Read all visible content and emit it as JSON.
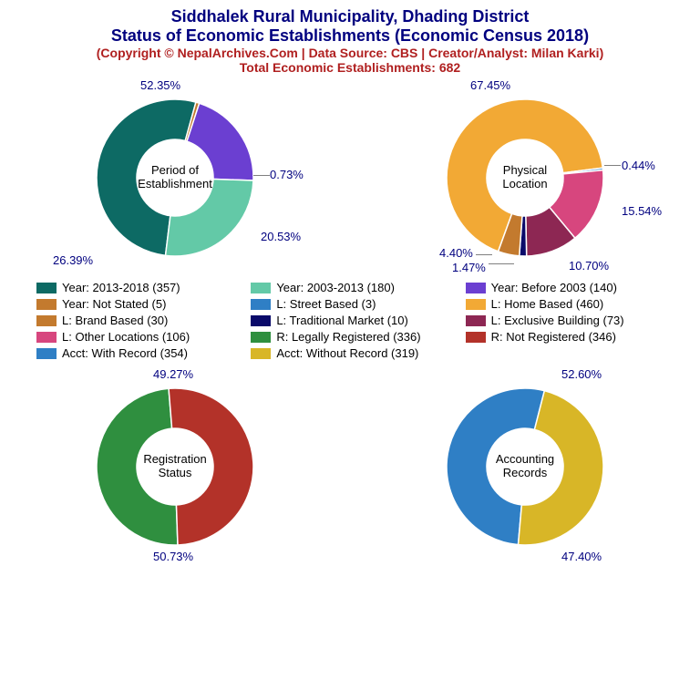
{
  "title": {
    "line1": "Siddhalek Rural Municipality, Dhading District",
    "line2": "Status of Economic Establishments (Economic Census 2018)",
    "line3": "(Copyright © NepalArchives.Com | Data Source: CBS | Creator/Analyst: Milan Karki)",
    "line4": "Total Economic Establishments: 682",
    "title_color": "#00007f",
    "credit_color": "#b02020",
    "title_fontsize": 18,
    "credit_fontsize": 14
  },
  "donut": {
    "outer_r": 86,
    "inner_r": 42,
    "stroke": "#ffffff",
    "stroke_w": 1.5
  },
  "charts": {
    "period": {
      "center_label": "Period of\nEstablishment",
      "slices": [
        {
          "label": "52.35%",
          "value": 52.35,
          "color": "#0d6a64"
        },
        {
          "label": "0.73%",
          "value": 0.73,
          "color": "#c37a2e"
        },
        {
          "label": "20.53%",
          "value": 20.53,
          "color": "#6b3fd1"
        },
        {
          "label": "26.39%",
          "value": 26.39,
          "color": "#63c9a7"
        }
      ],
      "start_angle": -173
    },
    "location": {
      "center_label": "Physical\nLocation",
      "slices": [
        {
          "label": "67.45%",
          "value": 67.45,
          "color": "#f2a935"
        },
        {
          "label": "0.44%",
          "value": 0.44,
          "color": "#2f7fc5"
        },
        {
          "label": "15.54%",
          "value": 15.54,
          "color": "#d7467e"
        },
        {
          "label": "10.70%",
          "value": 10.7,
          "color": "#8d2753"
        },
        {
          "label": "1.47%",
          "value": 1.47,
          "color": "#0a0a6a"
        },
        {
          "label": "4.40%",
          "value": 4.4,
          "color": "#c37a2e"
        }
      ],
      "start_angle": -160
    },
    "registration": {
      "center_label": "Registration\nStatus",
      "slices": [
        {
          "label": "49.27%",
          "value": 49.27,
          "color": "#2f8f3f"
        },
        {
          "label": "50.73%",
          "value": 50.73,
          "color": "#b33229"
        }
      ],
      "start_angle": -182
    },
    "accounting": {
      "center_label": "Accounting\nRecords",
      "slices": [
        {
          "label": "52.60%",
          "value": 52.6,
          "color": "#2f7fc5"
        },
        {
          "label": "47.40%",
          "value": 47.4,
          "color": "#d8b627"
        }
      ],
      "start_angle": -175
    }
  },
  "legend": [
    {
      "label": "Year: 2013-2018 (357)",
      "color": "#0d6a64"
    },
    {
      "label": "Year: 2003-2013 (180)",
      "color": "#63c9a7"
    },
    {
      "label": "Year: Before 2003 (140)",
      "color": "#6b3fd1"
    },
    {
      "label": "Year: Not Stated (5)",
      "color": "#c37a2e"
    },
    {
      "label": "L: Street Based (3)",
      "color": "#2f7fc5"
    },
    {
      "label": "L: Home Based (460)",
      "color": "#f2a935"
    },
    {
      "label": "L: Brand Based (30)",
      "color": "#c37a2e"
    },
    {
      "label": "L: Traditional Market (10)",
      "color": "#0a0a6a"
    },
    {
      "label": "L: Exclusive Building (73)",
      "color": "#8d2753"
    },
    {
      "label": "L: Other Locations (106)",
      "color": "#d7467e"
    },
    {
      "label": "R: Legally Registered (336)",
      "color": "#2f8f3f"
    },
    {
      "label": "R: Not Registered (346)",
      "color": "#b33229"
    },
    {
      "label": "Acct: With Record (354)",
      "color": "#2f7fc5"
    },
    {
      "label": "Acct: Without Record (319)",
      "color": "#d8b627"
    }
  ]
}
